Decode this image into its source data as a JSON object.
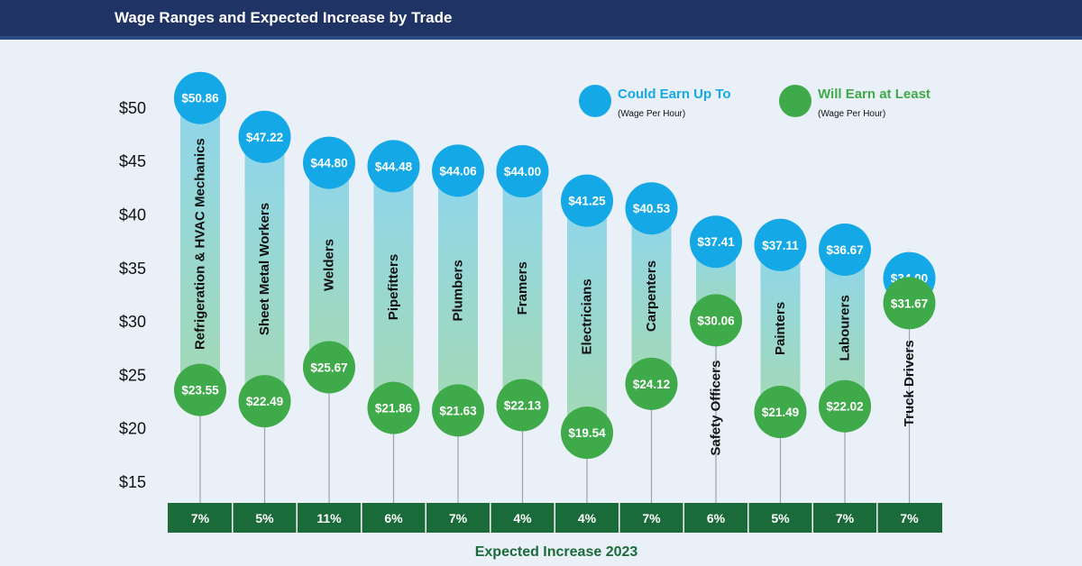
{
  "header": {
    "title": "Wage Ranges and Expected Increase by Trade"
  },
  "colors": {
    "header_bg": "#1f3364",
    "max_circle": "#14a9e6",
    "min_circle": "#3faa49",
    "bar_top": "#8fd6ec",
    "bar_bottom": "#a3d9b5",
    "increase_bar": "#1b6b3a",
    "title_green": "#1b6b3a",
    "legend_blue": "#14a9e6",
    "legend_green": "#3faa49"
  },
  "chart_data": {
    "type": "range-bar",
    "title": "Wage Ranges and Expected Increase by Trade",
    "ylim": [
      15,
      52
    ],
    "yticks": [
      15,
      20,
      25,
      30,
      35,
      40,
      45,
      50
    ],
    "ytick_labels": [
      "$15",
      "$20",
      "$25",
      "$30",
      "$35",
      "$40",
      "$45",
      "$50"
    ],
    "categories": [
      "Refrigeration & HVAC Mechanics",
      "Sheet Metal Workers",
      "Welders",
      "Pipefitters",
      "Plumbers",
      "Framers",
      "Electricians",
      "Carpenters",
      "Safety Officers",
      "Painters",
      "Labourers",
      "Truck Drivers"
    ],
    "series": [
      {
        "name": "Could Earn Up To",
        "sublabel": "(Wage Per Hour)",
        "values": [
          50.86,
          47.22,
          44.8,
          44.48,
          44.06,
          44.0,
          41.25,
          40.53,
          37.41,
          37.11,
          36.67,
          34.0
        ],
        "labels": [
          "$50.86",
          "$47.22",
          "$44.80",
          "$44.48",
          "$44.06",
          "$44.00",
          "$41.25",
          "$40.53",
          "$37.41",
          "$37.11",
          "$36.67",
          "$34.00"
        ]
      },
      {
        "name": "Will Earn at Least",
        "sublabel": "(Wage Per Hour)",
        "values": [
          23.55,
          22.49,
          25.67,
          21.86,
          21.63,
          22.13,
          19.54,
          24.12,
          30.06,
          21.49,
          22.02,
          31.67
        ],
        "labels": [
          "$23.55",
          "$22.49",
          "$25.67",
          "$21.86",
          "$21.63",
          "$22.13",
          "$19.54",
          "$24.12",
          "$30.06",
          "$21.49",
          "$22.02",
          "$31.67"
        ]
      }
    ],
    "increase": {
      "title": "Expected Increase 2023",
      "values": [
        7,
        5,
        11,
        6,
        7,
        4,
        4,
        7,
        6,
        5,
        7,
        7
      ],
      "labels": [
        "7%",
        "5%",
        "11%",
        "6%",
        "7%",
        "4%",
        "4%",
        "7%",
        "6%",
        "5%",
        "7%",
        "7%"
      ]
    }
  }
}
